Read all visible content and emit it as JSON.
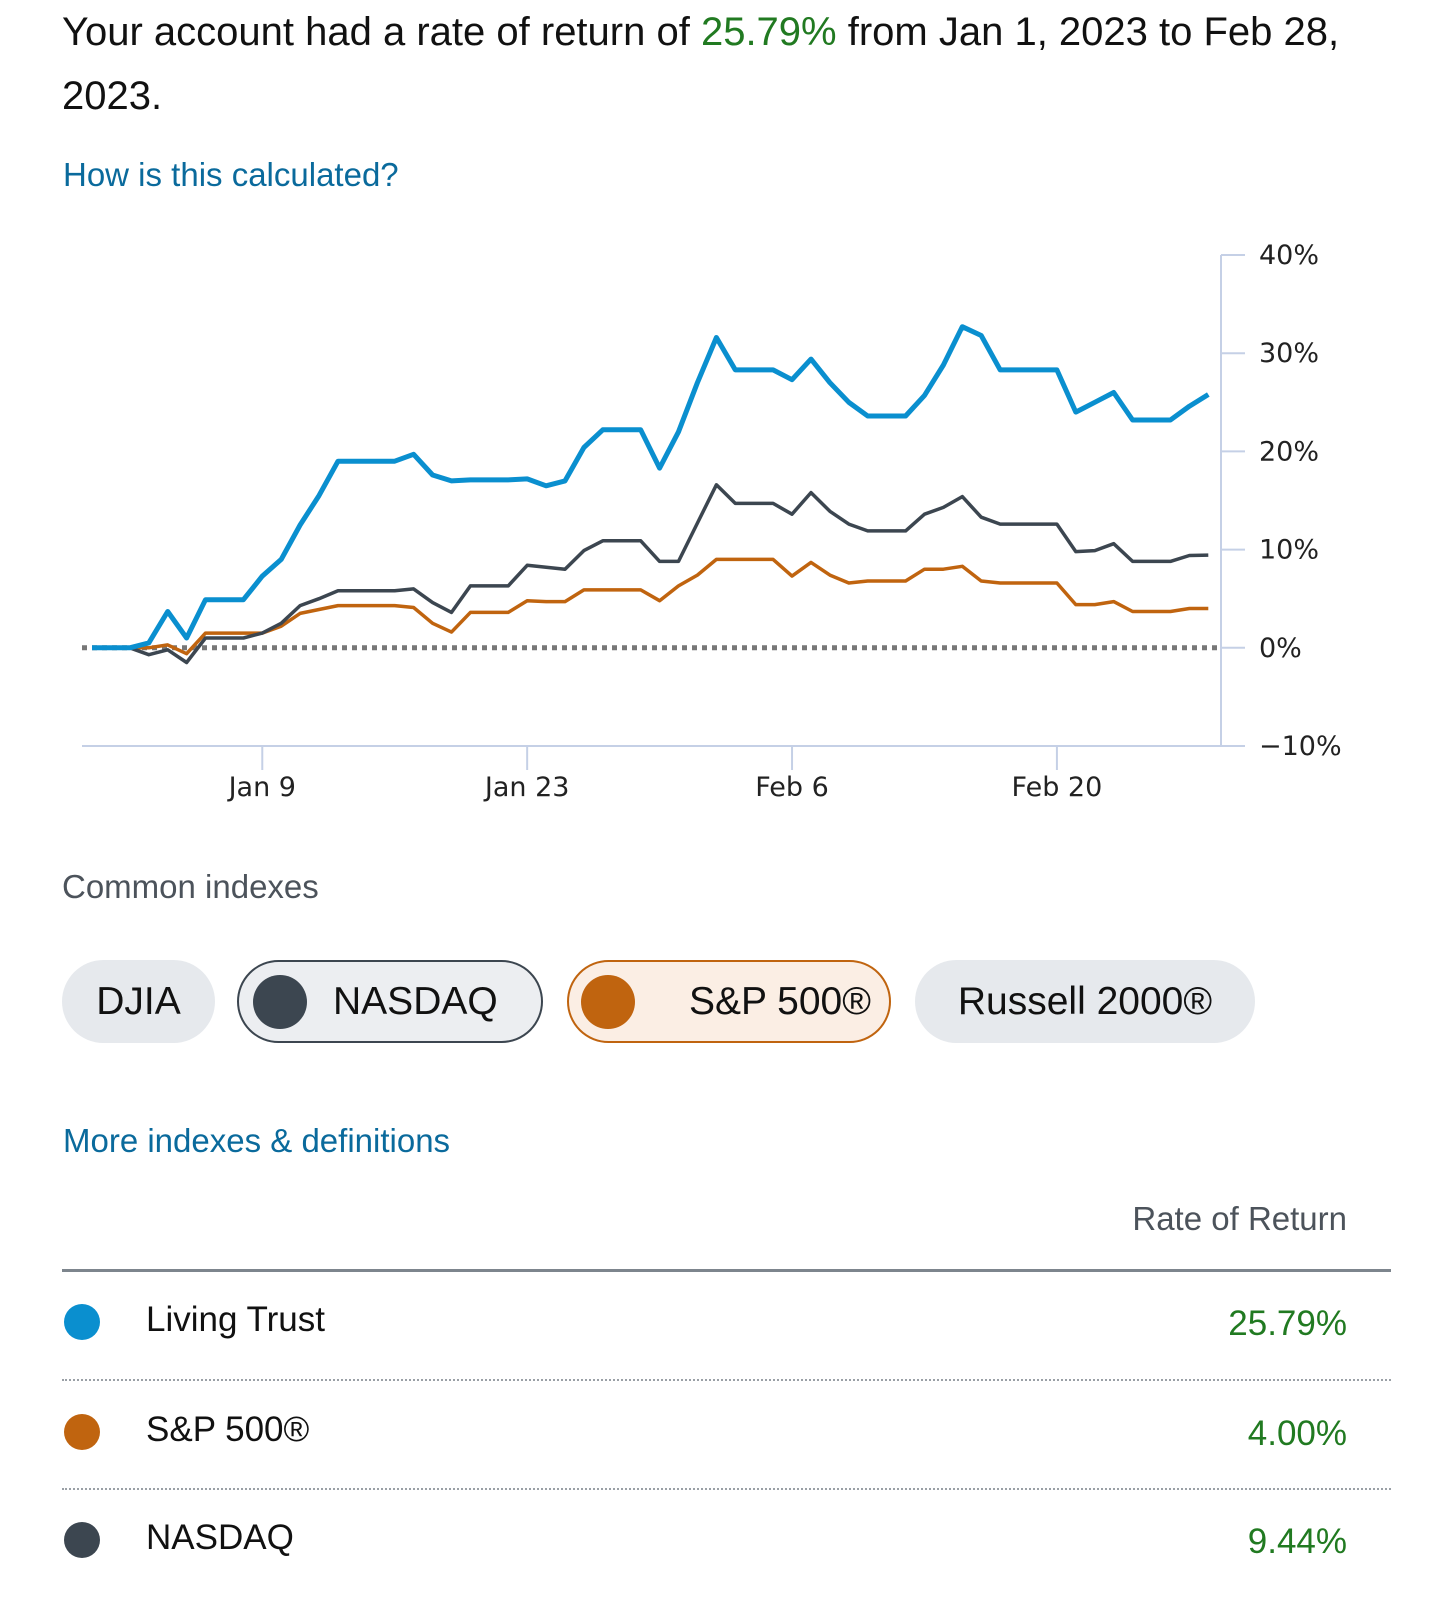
{
  "headline": {
    "prefix": "Your account had a rate of return of ",
    "rate": "25.79%",
    "suffix": " from Jan 1, 2023 to Feb 28, 2023."
  },
  "links": {
    "how_calculated": "How is this calculated?",
    "more_indexes": "More indexes & definitions"
  },
  "colors": {
    "account": "#0a8fcf",
    "nasdaq": "#3c4650",
    "sp500": "#c0640f",
    "positive": "#217a21",
    "link": "#0a6a9c"
  },
  "chart_data": {
    "type": "line",
    "title": "",
    "xlabel": "",
    "ylabel": "",
    "x_start": "Dec 31",
    "x_end": "Feb 28",
    "x_ticks": [
      {
        "label": "Jan 9",
        "day": 9
      },
      {
        "label": "Jan 23",
        "day": 23
      },
      {
        "label": "Feb 6",
        "day": 37
      },
      {
        "label": "Feb 20",
        "day": 51
      }
    ],
    "y_ticks": [
      {
        "label": "40%",
        "value": 40
      },
      {
        "label": "30%",
        "value": 30
      },
      {
        "label": "20%",
        "value": 20
      },
      {
        "label": "10%",
        "value": 10
      },
      {
        "label": "0%",
        "value": 0
      },
      {
        "label": "−10%",
        "value": -10
      }
    ],
    "ylim": [
      -10,
      40
    ],
    "baseline": 0,
    "series": [
      {
        "name": "Living Trust",
        "color": "#0a8fcf",
        "values": [
          0,
          0,
          0,
          0.5,
          3.7,
          1,
          4.9,
          4.9,
          4.9,
          7.3,
          9,
          12.5,
          15.5,
          19,
          19,
          19,
          19,
          19.7,
          17.6,
          17,
          17.1,
          17.1,
          17.1,
          17.2,
          16.5,
          17,
          20.4,
          22.2,
          22.2,
          22.2,
          18.3,
          22,
          27,
          31.6,
          28.3,
          28.3,
          28.3,
          27.3,
          29.4,
          27,
          25,
          23.6,
          23.6,
          23.6,
          25.7,
          28.8,
          32.7,
          31.8,
          28.3,
          28.3,
          28.3,
          28.3,
          24,
          25,
          26,
          23.2,
          23.2,
          23.2,
          24.6,
          25.79
        ]
      },
      {
        "name": "NASDAQ",
        "color": "#3c4650",
        "values": [
          0,
          0,
          0,
          -0.7,
          -0.2,
          -1.5,
          1,
          1,
          1,
          1.5,
          2.5,
          4.3,
          5,
          5.8,
          5.8,
          5.8,
          5.8,
          6,
          4.6,
          3.6,
          6.3,
          6.3,
          6.3,
          8.4,
          8.2,
          8,
          9.9,
          10.9,
          10.9,
          10.9,
          8.8,
          8.8,
          12.7,
          16.6,
          14.7,
          14.7,
          14.7,
          13.6,
          15.8,
          13.9,
          12.6,
          11.9,
          11.9,
          11.9,
          13.6,
          14.3,
          15.4,
          13.3,
          12.6,
          12.6,
          12.6,
          12.6,
          9.8,
          9.9,
          10.6,
          8.8,
          8.8,
          8.8,
          9.4,
          9.44
        ]
      },
      {
        "name": "S&P 500®",
        "color": "#c0640f",
        "values": [
          0,
          0,
          0,
          0,
          0.3,
          -0.6,
          1.5,
          1.5,
          1.5,
          1.5,
          2.2,
          3.5,
          3.9,
          4.3,
          4.3,
          4.3,
          4.3,
          4.1,
          2.5,
          1.6,
          3.6,
          3.6,
          3.6,
          4.8,
          4.7,
          4.7,
          5.9,
          5.9,
          5.9,
          5.9,
          4.8,
          6.3,
          7.4,
          9,
          9,
          9,
          9,
          7.3,
          8.7,
          7.4,
          6.6,
          6.8,
          6.8,
          6.8,
          8,
          8,
          8.3,
          6.8,
          6.6,
          6.6,
          6.6,
          6.6,
          4.4,
          4.4,
          4.7,
          3.7,
          3.7,
          3.7,
          4,
          4.0
        ]
      }
    ]
  },
  "indexes": {
    "heading": "Common indexes",
    "items": [
      {
        "label": "DJIA",
        "selected": false
      },
      {
        "label": "NASDAQ",
        "selected": true
      },
      {
        "label": "S&P 500®",
        "selected": true
      },
      {
        "label": "Russell 2000®",
        "selected": false
      }
    ]
  },
  "table": {
    "header": "Rate of Return",
    "rows": [
      {
        "name": "Living Trust",
        "value": "25.79%"
      },
      {
        "name": "S&P 500®",
        "value": "4.00%"
      },
      {
        "name": "NASDAQ",
        "value": "9.44%"
      }
    ]
  }
}
